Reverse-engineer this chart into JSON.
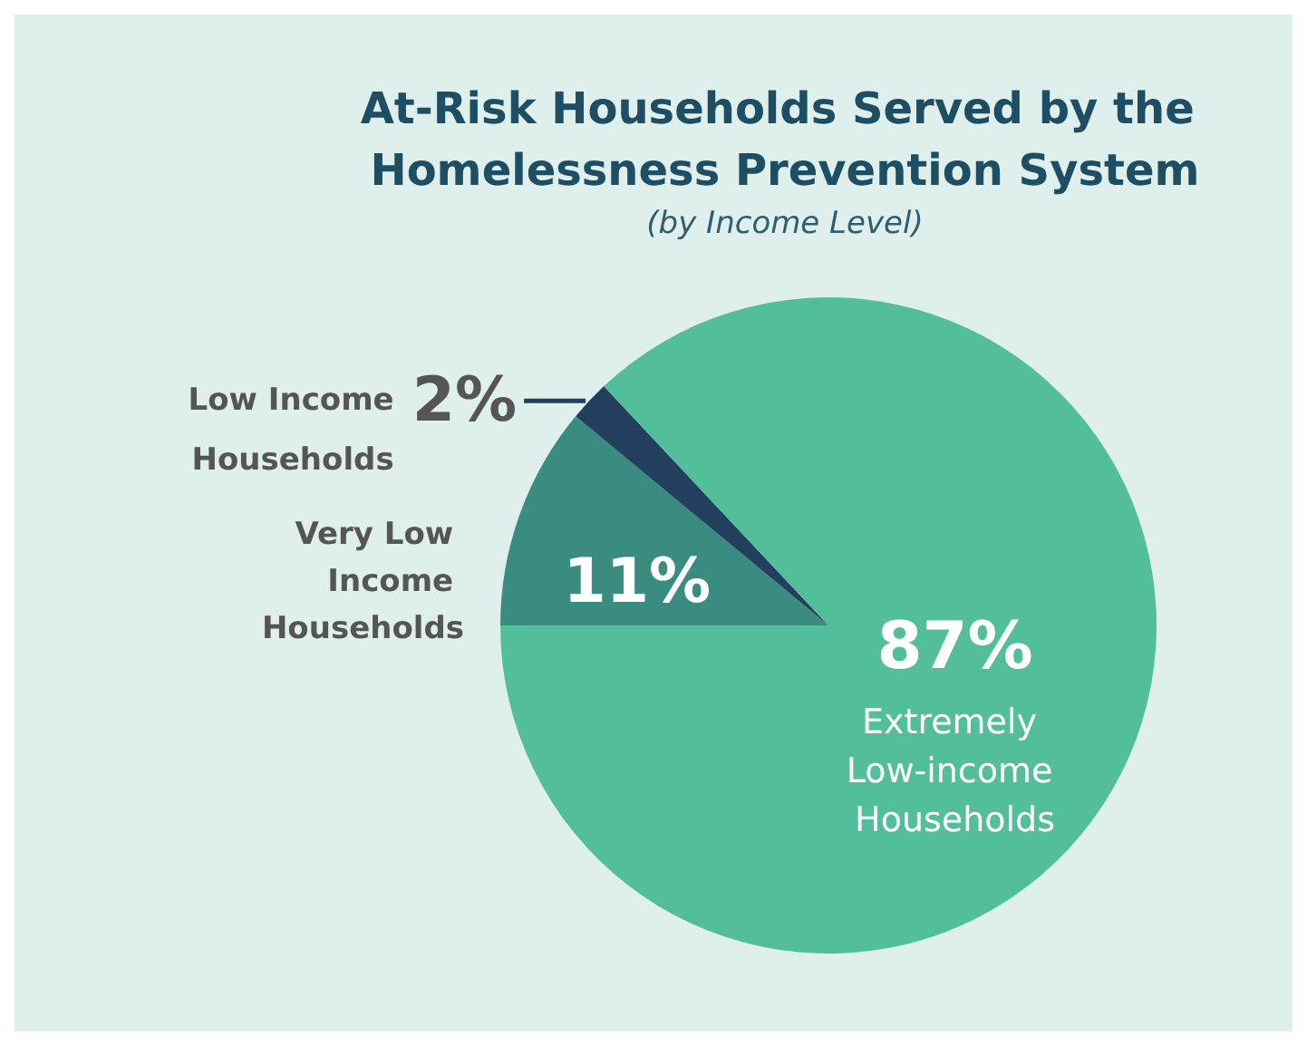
{
  "chart_data": {
    "type": "pie",
    "title": "At-Risk Households Served by the Homelessness Prevention System",
    "subtitle": "(by Income Level)",
    "categories": [
      "Very Low Income Households",
      "Low Income Households",
      "Extremely Low-income Households"
    ],
    "values": [
      11,
      2,
      87
    ],
    "value_labels": [
      "11%",
      "2%",
      "87%"
    ],
    "colors": [
      "#3a8c80",
      "#22405e",
      "#52bf9a"
    ],
    "legend": false
  }
}
